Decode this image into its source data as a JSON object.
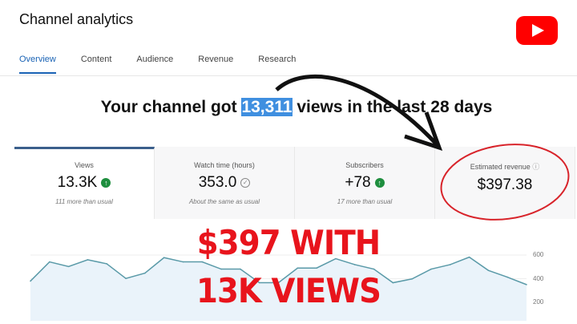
{
  "header": {
    "title": "Channel analytics",
    "logo": "youtube-logo"
  },
  "tabs": [
    {
      "label": "Overview",
      "active": true
    },
    {
      "label": "Content"
    },
    {
      "label": "Audience"
    },
    {
      "label": "Revenue"
    },
    {
      "label": "Research"
    }
  ],
  "headline": {
    "pre": "Your channel got ",
    "highlight": "13,311",
    "post": " views in the last 28 days"
  },
  "cards": [
    {
      "label": "Views",
      "value": "13.3K",
      "icon": "arrow-up-icon",
      "note": "111 more than usual"
    },
    {
      "label": "Watch time (hours)",
      "value": "353.0",
      "icon": "check-icon",
      "note": "About the same as usual"
    },
    {
      "label": "Subscribers",
      "value": "+78",
      "icon": "arrow-up-icon",
      "note": "17 more than usual"
    },
    {
      "label": "Estimated revenue",
      "value": "$397.38",
      "icon": "info-icon",
      "note": ""
    }
  ],
  "overlay": {
    "line1": "$397 WITH",
    "line2": "13K VIEWS"
  },
  "colors": {
    "accent": "#1a63b5",
    "overlay": "#e8141c",
    "line": "#5a9aa8",
    "fill": "#eaf3fa"
  },
  "chart_data": {
    "type": "area",
    "y_ticks": [
      "600",
      "400",
      "200"
    ],
    "ylim": [
      200,
      600
    ],
    "grid": true,
    "values": [
      380,
      542,
      503,
      560,
      526,
      402,
      447,
      578,
      542,
      542,
      481,
      481,
      366,
      366,
      490,
      490,
      569,
      519,
      481,
      366,
      398,
      481,
      519,
      582,
      470,
      413,
      350
    ]
  }
}
